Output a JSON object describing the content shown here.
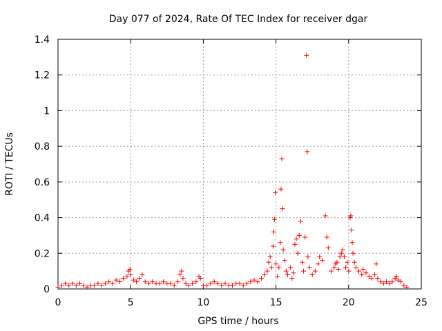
{
  "chart_data": {
    "type": "scatter",
    "title": "Day 077 of 2024, Rate Of TEC Index for receiver dgar",
    "xlabel": "GPS time / hours",
    "ylabel": "ROTI / TECUs",
    "xlim": [
      0,
      25
    ],
    "ylim": [
      0,
      1.4
    ],
    "x_ticks": [
      0,
      5,
      10,
      15,
      20,
      25
    ],
    "x_tick_labels": [
      "0",
      "5",
      "10",
      "15",
      "20",
      "25"
    ],
    "y_ticks": [
      0,
      0.2,
      0.4,
      0.6,
      0.8,
      1.0,
      1.2,
      1.4
    ],
    "y_tick_labels": [
      "0",
      "0.2",
      "0.4",
      "0.6",
      "0.8",
      "1",
      "1.2",
      "1.4"
    ],
    "grid": true,
    "marker": "+",
    "marker_color": "#ff0000",
    "series": [
      {
        "points": [
          [
            0.0,
            0.01
          ],
          [
            0.25,
            0.02
          ],
          [
            0.5,
            0.03
          ],
          [
            0.75,
            0.02
          ],
          [
            1.0,
            0.03
          ],
          [
            1.25,
            0.02
          ],
          [
            1.5,
            0.03
          ],
          [
            1.75,
            0.02
          ],
          [
            2.0,
            0.01
          ],
          [
            2.25,
            0.02
          ],
          [
            2.5,
            0.02
          ],
          [
            2.75,
            0.03
          ],
          [
            3.0,
            0.02
          ],
          [
            3.25,
            0.03
          ],
          [
            3.5,
            0.04
          ],
          [
            3.75,
            0.03
          ],
          [
            4.0,
            0.05
          ],
          [
            4.25,
            0.04
          ],
          [
            4.5,
            0.06
          ],
          [
            4.75,
            0.07
          ],
          [
            4.85,
            0.1
          ],
          [
            4.95,
            0.11
          ],
          [
            5.0,
            0.08
          ],
          [
            5.2,
            0.05
          ],
          [
            5.4,
            0.04
          ],
          [
            5.6,
            0.06
          ],
          [
            5.8,
            0.08
          ],
          [
            6.0,
            0.04
          ],
          [
            6.25,
            0.03
          ],
          [
            6.5,
            0.04
          ],
          [
            6.75,
            0.03
          ],
          [
            7.0,
            0.03
          ],
          [
            7.25,
            0.04
          ],
          [
            7.5,
            0.03
          ],
          [
            7.75,
            0.03
          ],
          [
            8.0,
            0.02
          ],
          [
            8.25,
            0.04
          ],
          [
            8.4,
            0.08
          ],
          [
            8.5,
            0.1
          ],
          [
            8.6,
            0.06
          ],
          [
            8.8,
            0.03
          ],
          [
            9.0,
            0.02
          ],
          [
            9.25,
            0.03
          ],
          [
            9.5,
            0.04
          ],
          [
            9.7,
            0.07
          ],
          [
            9.8,
            0.06
          ],
          [
            10.0,
            0.02
          ],
          [
            10.25,
            0.02
          ],
          [
            10.5,
            0.03
          ],
          [
            10.75,
            0.04
          ],
          [
            11.0,
            0.03
          ],
          [
            11.25,
            0.02
          ],
          [
            11.5,
            0.03
          ],
          [
            11.75,
            0.02
          ],
          [
            12.0,
            0.02
          ],
          [
            12.25,
            0.03
          ],
          [
            12.5,
            0.03
          ],
          [
            12.75,
            0.02
          ],
          [
            13.0,
            0.03
          ],
          [
            13.25,
            0.04
          ],
          [
            13.5,
            0.05
          ],
          [
            13.75,
            0.04
          ],
          [
            14.0,
            0.06
          ],
          [
            14.2,
            0.08
          ],
          [
            14.4,
            0.1
          ],
          [
            14.5,
            0.15
          ],
          [
            14.6,
            0.18
          ],
          [
            14.7,
            0.12
          ],
          [
            14.8,
            0.24
          ],
          [
            14.85,
            0.32
          ],
          [
            14.9,
            0.39
          ],
          [
            14.95,
            0.54
          ],
          [
            15.0,
            0.14
          ],
          [
            15.1,
            0.07
          ],
          [
            15.2,
            0.12
          ],
          [
            15.3,
            0.26
          ],
          [
            15.35,
            0.56
          ],
          [
            15.4,
            0.73
          ],
          [
            15.45,
            0.45
          ],
          [
            15.5,
            0.22
          ],
          [
            15.6,
            0.16
          ],
          [
            15.7,
            0.1
          ],
          [
            15.8,
            0.08
          ],
          [
            16.0,
            0.12
          ],
          [
            16.1,
            0.06
          ],
          [
            16.2,
            0.09
          ],
          [
            16.3,
            0.25
          ],
          [
            16.4,
            0.28
          ],
          [
            16.5,
            0.2
          ],
          [
            16.6,
            0.3
          ],
          [
            16.7,
            0.38
          ],
          [
            16.8,
            0.15
          ],
          [
            16.9,
            0.1
          ],
          [
            17.0,
            0.29
          ],
          [
            17.1,
            1.31
          ],
          [
            17.15,
            0.77
          ],
          [
            17.2,
            0.18
          ],
          [
            17.3,
            0.12
          ],
          [
            17.5,
            0.08
          ],
          [
            17.7,
            0.1
          ],
          [
            17.9,
            0.14
          ],
          [
            18.0,
            0.18
          ],
          [
            18.2,
            0.16
          ],
          [
            18.4,
            0.41
          ],
          [
            18.5,
            0.29
          ],
          [
            18.6,
            0.23
          ],
          [
            18.8,
            0.1
          ],
          [
            19.0,
            0.12
          ],
          [
            19.1,
            0.14
          ],
          [
            19.2,
            0.15
          ],
          [
            19.3,
            0.11
          ],
          [
            19.4,
            0.18
          ],
          [
            19.5,
            0.2
          ],
          [
            19.6,
            0.22
          ],
          [
            19.7,
            0.18
          ],
          [
            19.8,
            0.12
          ],
          [
            19.9,
            0.15
          ],
          [
            20.0,
            0.1
          ],
          [
            20.1,
            0.4
          ],
          [
            20.15,
            0.41
          ],
          [
            20.2,
            0.33
          ],
          [
            20.25,
            0.26
          ],
          [
            20.3,
            0.2
          ],
          [
            20.4,
            0.15
          ],
          [
            20.5,
            0.12
          ],
          [
            20.7,
            0.1
          ],
          [
            20.9,
            0.08
          ],
          [
            21.0,
            0.11
          ],
          [
            21.2,
            0.09
          ],
          [
            21.4,
            0.07
          ],
          [
            21.6,
            0.06
          ],
          [
            21.8,
            0.08
          ],
          [
            21.9,
            0.14
          ],
          [
            22.0,
            0.06
          ],
          [
            22.2,
            0.04
          ],
          [
            22.4,
            0.03
          ],
          [
            22.6,
            0.04
          ],
          [
            22.8,
            0.03
          ],
          [
            23.0,
            0.04
          ],
          [
            23.2,
            0.06
          ],
          [
            23.3,
            0.07
          ],
          [
            23.4,
            0.05
          ],
          [
            23.6,
            0.04
          ],
          [
            23.8,
            0.02
          ],
          [
            24.0,
            0.01
          ]
        ]
      }
    ]
  }
}
